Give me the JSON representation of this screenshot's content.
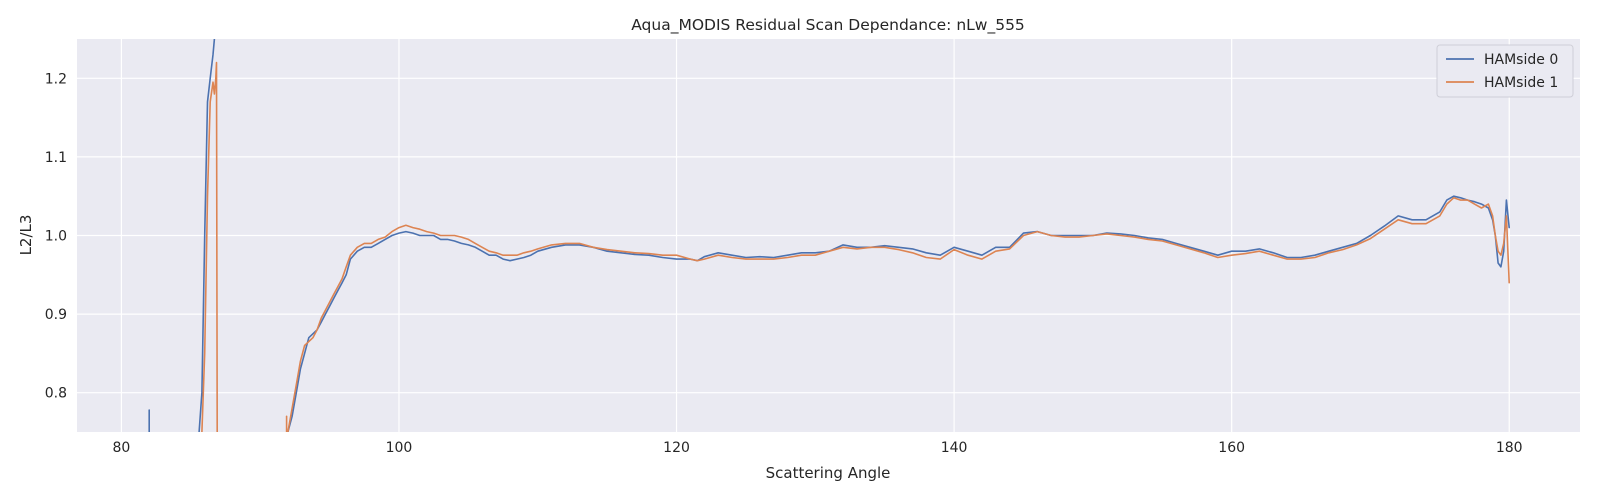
{
  "chart_data": {
    "type": "line",
    "title": "Aqua_MODIS Residual Scan Dependance: nLw_555",
    "xlabel": "Scattering Angle",
    "ylabel": "L2/L3",
    "xlim": [
      76.8,
      185.1
    ],
    "ylim": [
      0.75,
      1.25
    ],
    "xticks": [
      80,
      100,
      120,
      140,
      160,
      180
    ],
    "yticks": [
      0.8,
      0.9,
      1.0,
      1.1,
      1.2
    ],
    "xtick_labels": [
      "80",
      "100",
      "120",
      "140",
      "160",
      "180"
    ],
    "ytick_labels": [
      "0.8",
      "0.9",
      "1.0",
      "1.1",
      "1.2"
    ],
    "grid": true,
    "legend_position": "top-right",
    "colors": {
      "background": "#eaeaf2",
      "grid": "#ffffff",
      "HAMside 0": "#4c72b0",
      "HAMside 1": "#dd8452"
    },
    "series": [
      {
        "name": "HAMside 0",
        "color": "#4c72b0",
        "segments": [
          {
            "x": [
              82.0,
              82.0
            ],
            "y": [
              0.778,
              0.75
            ]
          },
          {
            "x": [
              85.6,
              85.8,
              86.0,
              86.2,
              86.4,
              86.6,
              86.7
            ],
            "y": [
              0.75,
              0.8,
              1.0,
              1.17,
              1.2,
              1.23,
              1.25
            ]
          },
          {
            "x": [
              92.0,
              92.3,
              92.6,
              92.9,
              93.2,
              93.5,
              93.8,
              94.1,
              94.4,
              94.7,
              95.0,
              95.3,
              95.6,
              95.9,
              96.2,
              96.5,
              97.0,
              97.5,
              98.0,
              98.5,
              99.0,
              99.5,
              100.0,
              100.5,
              101.0,
              101.5,
              102.0,
              102.5,
              103.0,
              103.5,
              104.0,
              104.5,
              105.0,
              105.5,
              106.0,
              106.5,
              107.0,
              107.5,
              108.0,
              108.5,
              109.0,
              109.5,
              110.0,
              111.0,
              112.0,
              113.0,
              114.0,
              115.0,
              116.0,
              117.0,
              118.0,
              119.0,
              120.0,
              121.0,
              121.5,
              122.0,
              123.0,
              124.0,
              125.0,
              126.0,
              127.0,
              128.0,
              129.0,
              130.0,
              131.0,
              132.0,
              133.0,
              134.0,
              135.0,
              136.0,
              137.0,
              138.0,
              139.0,
              140.0,
              141.0,
              142.0,
              143.0,
              144.0,
              145.0,
              146.0,
              147.0,
              148.0,
              149.0,
              150.0,
              151.0,
              152.0,
              153.0,
              154.0,
              155.0,
              156.0,
              157.0,
              158.0,
              159.0,
              160.0,
              161.0,
              162.0,
              163.0,
              164.0,
              165.0,
              166.0,
              167.0,
              168.0,
              169.0,
              170.0,
              171.0,
              172.0,
              173.0,
              174.0,
              175.0,
              175.5,
              176.0,
              176.5,
              177.0,
              177.5,
              178.0,
              178.5,
              178.8,
              179.0,
              179.2,
              179.4,
              179.6,
              179.8,
              180.0
            ],
            "y": [
              0.75,
              0.77,
              0.8,
              0.83,
              0.85,
              0.87,
              0.875,
              0.88,
              0.89,
              0.9,
              0.91,
              0.92,
              0.93,
              0.94,
              0.95,
              0.97,
              0.98,
              0.985,
              0.985,
              0.99,
              0.995,
              1.0,
              1.003,
              1.005,
              1.003,
              1.0,
              1.0,
              1.0,
              0.995,
              0.995,
              0.993,
              0.99,
              0.988,
              0.985,
              0.98,
              0.975,
              0.975,
              0.97,
              0.968,
              0.97,
              0.972,
              0.975,
              0.98,
              0.985,
              0.988,
              0.988,
              0.985,
              0.98,
              0.978,
              0.976,
              0.975,
              0.972,
              0.97,
              0.97,
              0.968,
              0.973,
              0.978,
              0.975,
              0.972,
              0.973,
              0.972,
              0.975,
              0.978,
              0.978,
              0.98,
              0.988,
              0.985,
              0.985,
              0.987,
              0.985,
              0.983,
              0.978,
              0.975,
              0.985,
              0.98,
              0.975,
              0.985,
              0.985,
              1.003,
              1.005,
              1.0,
              1.0,
              1.0,
              1.0,
              1.003,
              1.002,
              1.0,
              0.997,
              0.995,
              0.99,
              0.985,
              0.98,
              0.975,
              0.98,
              0.98,
              0.983,
              0.978,
              0.972,
              0.972,
              0.975,
              0.98,
              0.985,
              0.99,
              1.0,
              1.012,
              1.025,
              1.02,
              1.02,
              1.03,
              1.045,
              1.05,
              1.048,
              1.045,
              1.043,
              1.04,
              1.035,
              1.02,
              1.0,
              0.965,
              0.96,
              0.98,
              1.045,
              1.01
            ]
          }
        ]
      },
      {
        "name": "HAMside 1",
        "color": "#dd8452",
        "segments": [
          {
            "x": [
              85.8,
              86.0,
              86.2,
              86.4,
              86.6,
              86.7,
              86.8,
              86.85,
              86.9
            ],
            "y": [
              0.75,
              0.85,
              1.05,
              1.17,
              1.195,
              1.18,
              1.2,
              1.22,
              0.75
            ]
          },
          {
            "x": [
              91.9,
              91.9
            ],
            "y": [
              0.75,
              0.77
            ]
          },
          {
            "x": [
              92.0,
              92.3,
              92.6,
              92.9,
              93.2,
              93.5,
              93.8,
              94.1,
              94.4,
              94.7,
              95.0,
              95.3,
              95.6,
              95.9,
              96.2,
              96.5,
              97.0,
              97.5,
              98.0,
              98.5,
              99.0,
              99.5,
              100.0,
              100.5,
              101.0,
              101.5,
              102.0,
              102.5,
              103.0,
              103.5,
              104.0,
              104.5,
              105.0,
              105.5,
              106.0,
              106.5,
              107.0,
              107.5,
              108.0,
              108.5,
              109.0,
              109.5,
              110.0,
              111.0,
              112.0,
              113.0,
              114.0,
              115.0,
              116.0,
              117.0,
              118.0,
              119.0,
              120.0,
              121.0,
              121.5,
              122.0,
              123.0,
              124.0,
              125.0,
              126.0,
              127.0,
              128.0,
              129.0,
              130.0,
              131.0,
              132.0,
              133.0,
              134.0,
              135.0,
              136.0,
              137.0,
              138.0,
              139.0,
              140.0,
              141.0,
              142.0,
              143.0,
              144.0,
              145.0,
              146.0,
              147.0,
              148.0,
              149.0,
              150.0,
              151.0,
              152.0,
              153.0,
              154.0,
              155.0,
              156.0,
              157.0,
              158.0,
              159.0,
              160.0,
              161.0,
              162.0,
              163.0,
              164.0,
              165.0,
              166.0,
              167.0,
              168.0,
              169.0,
              170.0,
              171.0,
              172.0,
              173.0,
              174.0,
              175.0,
              175.5,
              176.0,
              176.5,
              177.0,
              177.5,
              178.0,
              178.5,
              178.8,
              179.0,
              179.2,
              179.4,
              179.6,
              179.8,
              180.0
            ],
            "y": [
              0.75,
              0.78,
              0.81,
              0.84,
              0.86,
              0.865,
              0.87,
              0.88,
              0.895,
              0.905,
              0.915,
              0.925,
              0.935,
              0.945,
              0.96,
              0.975,
              0.985,
              0.99,
              0.99,
              0.995,
              0.998,
              1.005,
              1.01,
              1.013,
              1.01,
              1.008,
              1.005,
              1.003,
              1.0,
              1.0,
              1.0,
              0.998,
              0.995,
              0.99,
              0.985,
              0.98,
              0.978,
              0.975,
              0.975,
              0.975,
              0.978,
              0.98,
              0.983,
              0.988,
              0.99,
              0.99,
              0.985,
              0.982,
              0.98,
              0.978,
              0.977,
              0.975,
              0.975,
              0.97,
              0.968,
              0.97,
              0.975,
              0.972,
              0.97,
              0.97,
              0.97,
              0.972,
              0.975,
              0.975,
              0.98,
              0.985,
              0.983,
              0.985,
              0.985,
              0.982,
              0.978,
              0.972,
              0.97,
              0.982,
              0.975,
              0.97,
              0.98,
              0.983,
              1.0,
              1.005,
              1.0,
              0.998,
              0.998,
              1.0,
              1.002,
              1.0,
              0.998,
              0.995,
              0.993,
              0.988,
              0.983,
              0.978,
              0.972,
              0.975,
              0.977,
              0.98,
              0.975,
              0.97,
              0.97,
              0.972,
              0.978,
              0.982,
              0.988,
              0.996,
              1.008,
              1.02,
              1.015,
              1.015,
              1.025,
              1.04,
              1.048,
              1.045,
              1.045,
              1.04,
              1.035,
              1.04,
              1.025,
              1.0,
              0.98,
              0.975,
              0.99,
              1.025,
              0.94
            ]
          }
        ]
      }
    ]
  }
}
